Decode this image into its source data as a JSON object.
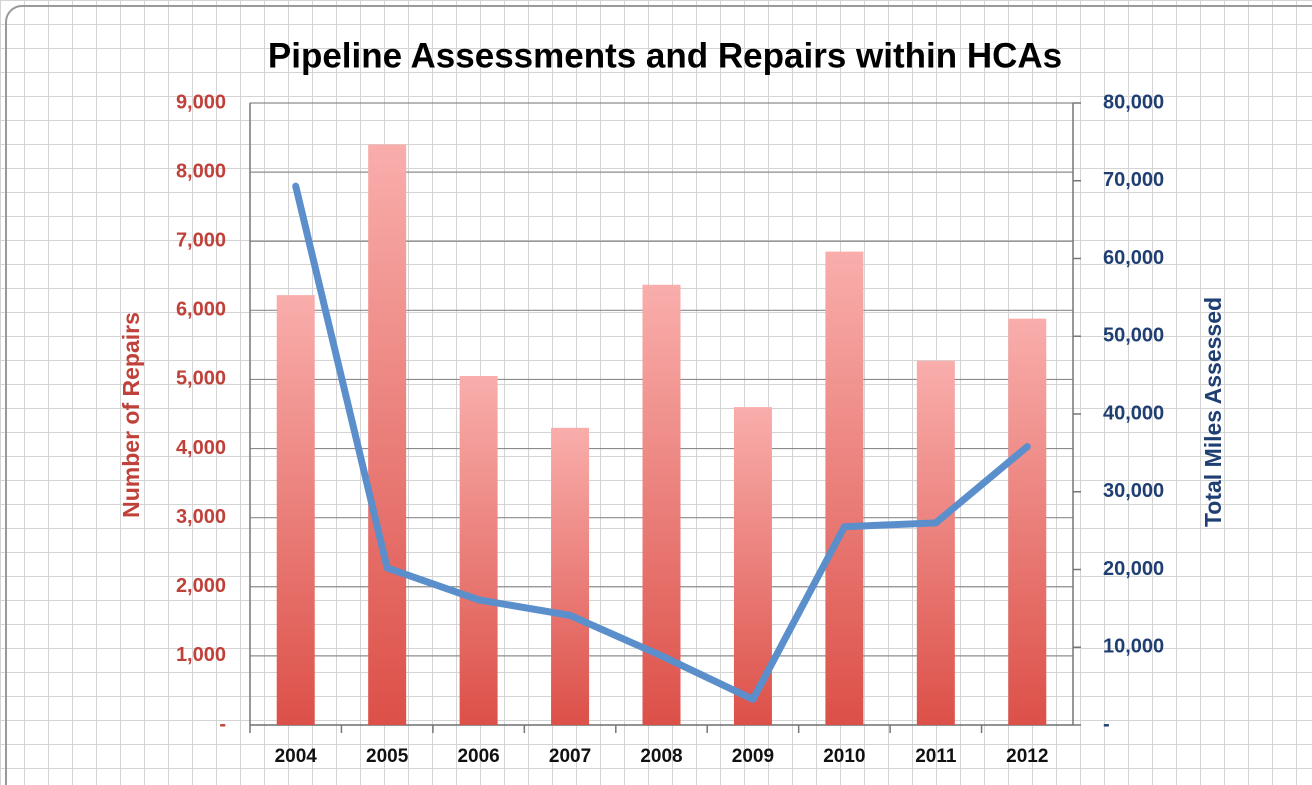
{
  "chart_data": {
    "type": "bar_line",
    "title": "Pipeline Assessments and Repairs within HCAs",
    "y_label": "Number of Repairs",
    "y2_label": "Total Miles Assessed",
    "categories": [
      "2004",
      "2005",
      "2006",
      "2007",
      "2008",
      "2009",
      "2010",
      "2011",
      "2012"
    ],
    "series": [
      {
        "name": "Number of Repairs",
        "type": "bar",
        "color": "#dc5048",
        "values": [
          6220,
          8400,
          5050,
          4300,
          6370,
          4600,
          6850,
          5270,
          5880
        ]
      },
      {
        "name": "Total Miles Assessed",
        "type": "line",
        "axis": "y2",
        "color": "#5b8fcb",
        "values": [
          69300,
          20200,
          16100,
          14100,
          8900,
          3300,
          25500,
          26000,
          35800
        ]
      }
    ],
    "ylim": [
      0,
      9000
    ],
    "yticks": [
      {
        "value": 0,
        "label": "-"
      },
      {
        "value": 1000,
        "label": "1,000"
      },
      {
        "value": 2000,
        "label": "2,000"
      },
      {
        "value": 3000,
        "label": "3,000"
      },
      {
        "value": 4000,
        "label": "4,000"
      },
      {
        "value": 5000,
        "label": "5,000"
      },
      {
        "value": 6000,
        "label": "6,000"
      },
      {
        "value": 7000,
        "label": "7,000"
      },
      {
        "value": 8000,
        "label": "8,000"
      },
      {
        "value": 9000,
        "label": "9,000"
      }
    ],
    "y2lim": [
      0,
      80000
    ],
    "y2ticks": [
      {
        "value": 0,
        "label": "-"
      },
      {
        "value": 10000,
        "label": "10,000"
      },
      {
        "value": 20000,
        "label": "20,000"
      },
      {
        "value": 30000,
        "label": "30,000"
      },
      {
        "value": 40000,
        "label": "40,000"
      },
      {
        "value": 50000,
        "label": "50,000"
      },
      {
        "value": 60000,
        "label": "60,000"
      },
      {
        "value": 70000,
        "label": "70,000"
      },
      {
        "value": 80000,
        "label": "80,000"
      }
    ],
    "grid": true
  }
}
